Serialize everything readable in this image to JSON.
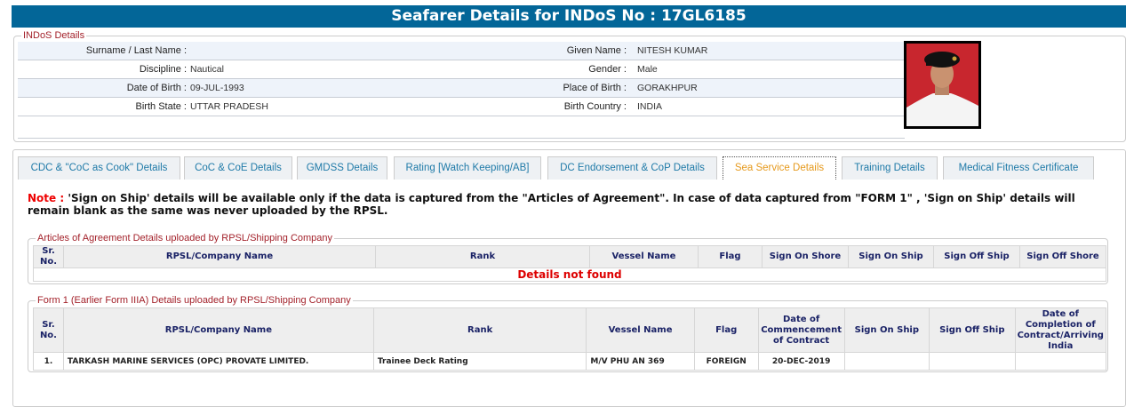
{
  "header": {
    "title": "Seafarer Details for INDoS No : 17GL6185"
  },
  "indos": {
    "legend": "INDoS Details",
    "rows": [
      {
        "l1": "Surname / Last Name :",
        "v1": "",
        "l2": "Given Name :",
        "v2": "NITESH KUMAR"
      },
      {
        "l1": "Discipline :",
        "v1": "Nautical",
        "l2": "Gender :",
        "v2": "Male"
      },
      {
        "l1": "Date of Birth :",
        "v1": "09-JUL-1993",
        "l2": "Place of Birth :",
        "v2": "GORAKHPUR"
      },
      {
        "l1": "Birth State :",
        "v1": "UTTAR PRADESH",
        "l2": "Birth Country :",
        "v2": "INDIA"
      }
    ]
  },
  "tabs": [
    "CDC & \"CoC as Cook\" Details",
    "CoC & CoE Details",
    "GMDSS Details",
    "Rating [Watch Keeping/AB]",
    "DC Endorsement & CoP Details",
    "Sea Service Details",
    "Training Details",
    "Medical Fitness Certificate"
  ],
  "active_tab": "Sea Service Details",
  "note": {
    "label": "Note :",
    "text": " 'Sign on Ship' details will be available only if the data is captured from the \"Articles of Agreement\". In case of data captured from \"FORM 1\" , 'Sign on Ship' details will remain blank as the same was never uploaded by the RPSL."
  },
  "articles": {
    "legend": "Articles of Agreement Details uploaded by RPSL/Shipping Company",
    "headers": [
      "Sr. No.",
      "RPSL/Company Name",
      "Rank",
      "Vessel Name",
      "Flag",
      "Sign On Shore",
      "Sign On Ship",
      "Sign Off Ship",
      "Sign Off Shore"
    ],
    "empty": "Details not found"
  },
  "form1": {
    "legend": "Form 1 (Earlier Form IIIA) Details uploaded by RPSL/Shipping Company",
    "headers": [
      "Sr. No.",
      "RPSL/Company Name",
      "Rank",
      "Vessel Name",
      "Flag",
      "Date of Commencement of Contract",
      "Sign On Ship",
      "Sign Off Ship",
      "Date of Completion of Contract/Arriving India"
    ],
    "rows": [
      [
        "1.",
        "TARKASH MARINE SERVICES (OPC) PROVATE LIMITED.",
        "Trainee Deck Rating",
        "M/V PHU AN 369",
        "FOREIGN",
        "20-DEC-2019",
        "",
        "",
        ""
      ]
    ]
  }
}
